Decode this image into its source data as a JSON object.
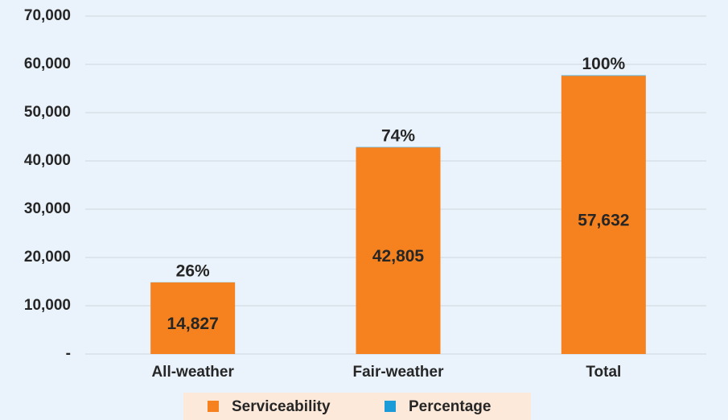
{
  "chart_data": {
    "type": "stacked_bar",
    "categories": [
      "All-weather",
      "Fair-weather",
      "Total"
    ],
    "series": [
      {
        "name": "Serviceability",
        "color": "#f5821f",
        "values": [
          14827,
          42805,
          57632
        ],
        "value_labels": [
          "14,827",
          "42,805",
          "57,632"
        ]
      },
      {
        "name": "Percentage",
        "color": "#1b9bd7",
        "values": [
          26,
          74,
          100
        ],
        "value_labels": [
          "26%",
          "74%",
          "100%"
        ]
      }
    ],
    "ylim": [
      0,
      70000
    ],
    "yticks": [
      {
        "value": 0,
        "label": "-"
      },
      {
        "value": 10000,
        "label": "10,000"
      },
      {
        "value": 20000,
        "label": "20,000"
      },
      {
        "value": 30000,
        "label": "30,000"
      },
      {
        "value": 40000,
        "label": "40,000"
      },
      {
        "value": 50000,
        "label": "50,000"
      },
      {
        "value": 60000,
        "label": "60,000"
      },
      {
        "value": 70000,
        "label": "70,000"
      }
    ],
    "grid": true,
    "legend": "bottom"
  }
}
